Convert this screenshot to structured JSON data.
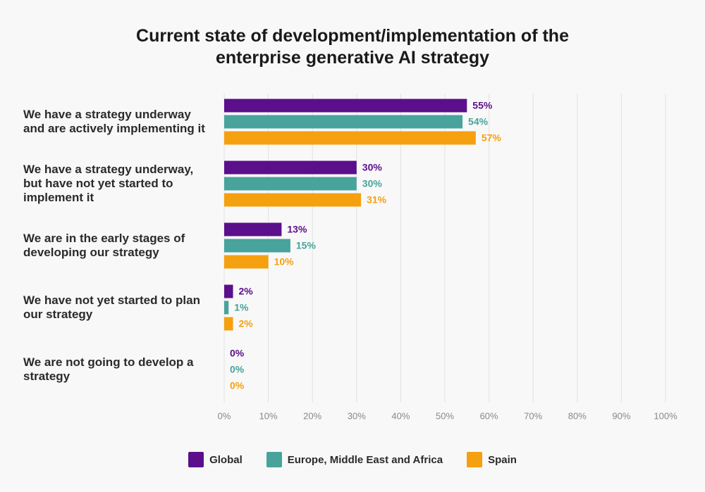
{
  "chart_data": {
    "type": "hbar",
    "title": "Current state of development/implementation of the enterprise generative AI strategy",
    "categories": [
      "We have a strategy underway and are actively implementing it",
      "We have a strategy underway, but have not yet started to implement it",
      "We are in the early stages of developing our strategy",
      "We have not yet started to plan our strategy",
      "We are not going to develop a strategy"
    ],
    "series": [
      {
        "name": "Global",
        "color": "#5b0f8a",
        "values": [
          55,
          30,
          13,
          2,
          0
        ],
        "value_labels": [
          "55%",
          "30%",
          "13%",
          "2%",
          "0%"
        ]
      },
      {
        "name": "Europe, Middle East and Africa",
        "color": "#47a39b",
        "values": [
          54,
          30,
          15,
          1,
          0
        ],
        "value_labels": [
          "54%",
          "30%",
          "15%",
          "1%",
          "0%"
        ]
      },
      {
        "name": "Spain",
        "color": "#f5a00f",
        "values": [
          57,
          31,
          10,
          2,
          0
        ],
        "value_labels": [
          "57%",
          "31%",
          "10%",
          "2%",
          "0%"
        ]
      }
    ],
    "xlim": [
      0,
      100
    ],
    "xticks": [
      {
        "value": 0,
        "label": "0%"
      },
      {
        "value": 10,
        "label": "10%"
      },
      {
        "value": 20,
        "label": "20%"
      },
      {
        "value": 30,
        "label": "30%"
      },
      {
        "value": 40,
        "label": "40%"
      },
      {
        "value": 50,
        "label": "50%"
      },
      {
        "value": 60,
        "label": "60%"
      },
      {
        "value": 70,
        "label": "70%"
      },
      {
        "value": 80,
        "label": "80%"
      },
      {
        "value": 90,
        "label": "90%"
      },
      {
        "value": 100,
        "label": "100%"
      }
    ],
    "grid": true
  }
}
